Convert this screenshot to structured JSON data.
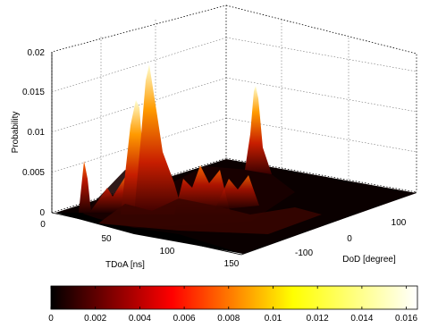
{
  "chart_data": {
    "type": "surface",
    "z_label": "Probability",
    "x_label": "TDoA [ns]",
    "y_label": "DoD [degree]",
    "z_ticks": [
      "0",
      "0.005",
      "0.01",
      "0.015",
      "0.02"
    ],
    "x_ticks": [
      "0",
      "50",
      "100",
      "150"
    ],
    "y_ticks": [
      "-100",
      "0",
      "100"
    ],
    "zlim": [
      0,
      0.02
    ],
    "xlim": [
      0,
      160
    ],
    "ylim": [
      -180,
      180
    ],
    "grid": true,
    "colormap": "hot",
    "colorbar": {
      "orientation": "horizontal",
      "placement": "bottom",
      "range": [
        0,
        0.0165
      ],
      "ticks": [
        "0",
        "0.002",
        "0.004",
        "0.006",
        "0.008",
        "0.01",
        "0.012",
        "0.014",
        "0.016"
      ]
    },
    "peaks": [
      {
        "tdoa": 38,
        "dod": -170,
        "probability": 0.019
      },
      {
        "tdoa": 30,
        "dod": -155,
        "probability": 0.013
      },
      {
        "tdoa": 5,
        "dod": -90,
        "probability": 0.0057
      },
      {
        "tdoa": 48,
        "dod": 120,
        "probability": 0.0147
      }
    ]
  }
}
